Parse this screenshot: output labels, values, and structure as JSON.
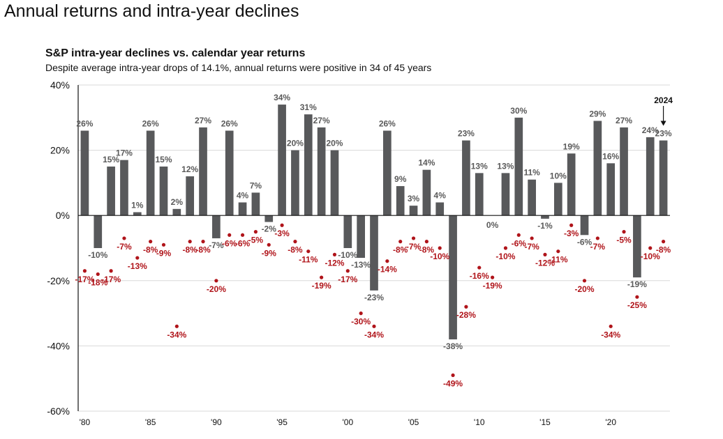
{
  "heading": "Annual returns and intra-year declines",
  "colors": {
    "bar": "#58595b",
    "decline": "#b0141a",
    "grid": "#d9d9d9",
    "axis": "#111111"
  },
  "chart_data": {
    "type": "bar",
    "title": "S&P intra-year declines vs. calendar year returns",
    "subtitle": "Despite average intra-year drops of 14.1%, annual returns were positive in 34 of 45 years",
    "x": [
      1980,
      1981,
      1982,
      1983,
      1984,
      1985,
      1986,
      1987,
      1988,
      1989,
      1990,
      1991,
      1992,
      1993,
      1994,
      1995,
      1996,
      1997,
      1998,
      1999,
      2000,
      2001,
      2002,
      2003,
      2004,
      2005,
      2006,
      2007,
      2008,
      2009,
      2010,
      2011,
      2012,
      2013,
      2014,
      2015,
      2016,
      2017,
      2018,
      2019,
      2020,
      2021,
      2022,
      2023,
      2024
    ],
    "x_tick_labels": [
      "'80",
      "'85",
      "'90",
      "'95",
      "'00",
      "'05",
      "'10",
      "'15",
      "'20"
    ],
    "y_tick_labels": [
      "40%",
      "20%",
      "0%",
      "-20%",
      "-40%",
      "-60%"
    ],
    "ylim": [
      -60,
      40
    ],
    "grid": true,
    "series": [
      {
        "kind": "bar",
        "values": [
          26,
          -10,
          15,
          17,
          1,
          26,
          15,
          2,
          12,
          27,
          -7,
          26,
          4,
          7,
          -2,
          34,
          20,
          31,
          27,
          20,
          -10,
          -13,
          -23,
          26,
          9,
          3,
          14,
          4,
          -38,
          23,
          13,
          0,
          13,
          30,
          11,
          -1,
          10,
          19,
          -6,
          29,
          16,
          27,
          -19,
          24,
          23
        ],
        "labels": [
          "26%",
          "-10%",
          "15%",
          "17%",
          "1%",
          "26%",
          "15%",
          "2%",
          "12%",
          "27%",
          "-7%",
          "26%",
          "4%",
          "7%",
          "-2%",
          "34%",
          "20%",
          "31%",
          "27%",
          "20%",
          "-10%",
          "-13%",
          "-23%",
          "26%",
          "9%",
          "3%",
          "14%",
          "4%",
          "-38%",
          "23%",
          "13%",
          "0%",
          "13%",
          "30%",
          "11%",
          "-1%",
          "10%",
          "19%",
          "-6%",
          "29%",
          "16%",
          "27%",
          "-19%",
          "24%",
          "23%"
        ]
      },
      {
        "kind": "point",
        "values": [
          -17,
          -18,
          -17,
          -7,
          -13,
          -8,
          -9,
          -34,
          -8,
          -8,
          -20,
          -6,
          -6,
          -5,
          -9,
          -3,
          -8,
          -11,
          -19,
          -12,
          -17,
          -30,
          -34,
          -14,
          -8,
          -7,
          -8,
          -10,
          -49,
          -28,
          -16,
          -19,
          -10,
          -6,
          -7,
          -12,
          -11,
          -3,
          -20,
          -7,
          -34,
          -5,
          -25,
          -10,
          -8
        ],
        "labels": [
          "-17%",
          "-18%",
          "-17%",
          "-7%",
          "-13%",
          "-8%",
          "-9%",
          "-34%",
          "-8%",
          "-8%",
          "-20%",
          "-6%",
          "-6%",
          "-5%",
          "-9%",
          "-3%",
          "-8%",
          "-11%",
          "-19%",
          "-12%",
          "-17%",
          "-30%",
          "-34%",
          "-14%",
          "-8%",
          "-7%",
          "-8%",
          "-10%",
          "-49%",
          "-28%",
          "-16%",
          "-19%",
          "-10%",
          "-6%",
          "-7%",
          "-12%",
          "-11%",
          "-3%",
          "-20%",
          "-7%",
          "-34%",
          "-5%",
          "-25%",
          "-10%",
          "-8%"
        ]
      }
    ],
    "annotations": [
      "2024"
    ]
  }
}
